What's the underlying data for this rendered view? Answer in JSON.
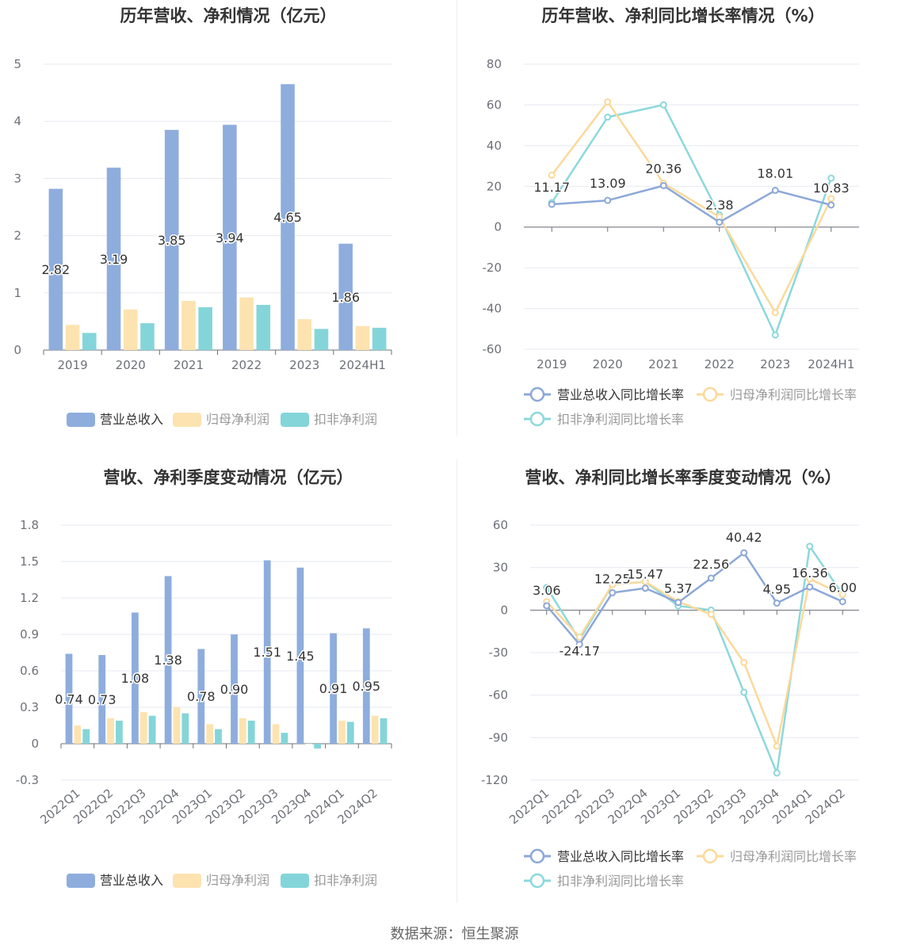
{
  "source": "数据来源：恒生聚源",
  "colors": {
    "revenue": "#8eaddd",
    "parent": "#fde3b0",
    "deducted": "#84d5d9",
    "revenue_line": "#8ca8d8",
    "parent_line": "#fbd99a",
    "deducted_line": "#8cd8dc"
  },
  "charts": {
    "annual_amount": {
      "title": "历年营收、净利情况（亿元）",
      "chart_data": {
        "type": "bar",
        "categories": [
          "2019",
          "2020",
          "2021",
          "2022",
          "2023",
          "2024H1"
        ],
        "ylim": [
          0,
          5
        ],
        "yticks": [
          0,
          1,
          2,
          3,
          4,
          5
        ],
        "tick_labels": [
          "0",
          "1",
          "2",
          "3",
          "4",
          "5"
        ],
        "series": [
          {
            "name": "营业总收入",
            "values": [
              2.82,
              3.19,
              3.85,
              3.94,
              4.65,
              1.86
            ],
            "labels": [
              "2.82",
              "3.19",
              "3.85",
              "3.94",
              "4.65",
              "1.86"
            ]
          },
          {
            "name": "归母净利润",
            "values": [
              0.44,
              0.71,
              0.86,
              0.92,
              0.54,
              0.42
            ]
          },
          {
            "name": "扣非净利润",
            "values": [
              0.3,
              0.47,
              0.75,
              0.79,
              0.37,
              0.39
            ]
          }
        ]
      }
    },
    "annual_growth": {
      "title": "历年营收、净利同比增长率情况（%）",
      "chart_data": {
        "type": "line",
        "categories": [
          "2019",
          "2020",
          "2021",
          "2022",
          "2023",
          "2024H1"
        ],
        "ylim": [
          -60,
          80
        ],
        "yticks": [
          -60,
          -40,
          -20,
          0,
          20,
          40,
          60,
          80
        ],
        "tick_labels": [
          "-60",
          "-40",
          "-20",
          "0",
          "20",
          "40",
          "60",
          "80"
        ],
        "series": [
          {
            "name": "营业总收入同比增长率",
            "values": [
              11.17,
              13.09,
              20.36,
              2.38,
              18.01,
              10.83
            ],
            "labels": [
              "11.17",
              "13.09",
              "20.36",
              "2.38",
              "18.01",
              "10.83"
            ]
          },
          {
            "name": "归母净利润同比增长率",
            "values": [
              25.5,
              61.5,
              21.5,
              5.0,
              -42.0,
              14.0
            ]
          },
          {
            "name": "扣非净利润同比增长率",
            "values": [
              12.0,
              54.0,
              60.0,
              6.0,
              -53.0,
              24.0
            ]
          }
        ]
      }
    },
    "quarterly_amount": {
      "title": "营收、净利季度变动情况（亿元）",
      "chart_data": {
        "type": "bar",
        "categories": [
          "2022Q1",
          "2022Q2",
          "2022Q3",
          "2022Q4",
          "2023Q1",
          "2023Q2",
          "2023Q3",
          "2023Q4",
          "2024Q1",
          "2024Q2"
        ],
        "ylim": [
          -0.3,
          1.8
        ],
        "yticks": [
          -0.3,
          0,
          0.3,
          0.6,
          0.9,
          1.2,
          1.5,
          1.8
        ],
        "tick_labels": [
          "-0.3",
          "0",
          "0.3",
          "0.6",
          "0.9",
          "1.2",
          "1.5",
          "1.8"
        ],
        "series": [
          {
            "name": "营业总收入",
            "values": [
              0.74,
              0.73,
              1.08,
              1.38,
              0.78,
              0.9,
              1.51,
              1.45,
              0.91,
              0.95
            ],
            "labels": [
              "0.74",
              "0.73",
              "1.08",
              "1.38",
              "0.78",
              "0.90",
              "1.51",
              "1.45",
              "0.91",
              "0.95"
            ]
          },
          {
            "name": "归母净利润",
            "values": [
              0.15,
              0.21,
              0.26,
              0.3,
              0.16,
              0.21,
              0.16,
              0.0,
              0.19,
              0.23
            ]
          },
          {
            "name": "扣非净利润",
            "values": [
              0.12,
              0.19,
              0.23,
              0.25,
              0.12,
              0.19,
              0.09,
              -0.04,
              0.18,
              0.21
            ]
          }
        ]
      }
    },
    "quarterly_growth": {
      "title": "营收、净利同比增长率季度变动情况（%）",
      "chart_data": {
        "type": "line",
        "categories": [
          "2022Q1",
          "2022Q2",
          "2022Q3",
          "2022Q4",
          "2023Q1",
          "2023Q2",
          "2023Q3",
          "2023Q4",
          "2024Q1",
          "2024Q2"
        ],
        "ylim": [
          -120,
          60
        ],
        "yticks": [
          -120,
          -90,
          -60,
          -30,
          0,
          30,
          60
        ],
        "tick_labels": [
          "-120",
          "-90",
          "-60",
          "-30",
          "0",
          "30",
          "60"
        ],
        "series": [
          {
            "name": "营业总收入同比增长率",
            "values": [
              3.06,
              -24.17,
              12.25,
              15.47,
              5.37,
              22.56,
              40.42,
              4.95,
              16.36,
              6.0
            ],
            "labels": [
              "3.06",
              "-24.17",
              "12.25",
              "15.47",
              "5.37",
              "22.56",
              "40.42",
              "4.95",
              "16.36",
              "6.00"
            ]
          },
          {
            "name": "归母净利润同比增长率",
            "values": [
              6.0,
              -19.0,
              18.0,
              20.0,
              6.0,
              -3.0,
              -37.0,
              -96.0,
              22.0,
              11.0
            ]
          },
          {
            "name": "扣非净利润同比增长率",
            "values": [
              16.0,
              -21.0,
              18.0,
              20.0,
              3.0,
              0.0,
              -58.0,
              -115.0,
              45.0,
              11.0
            ]
          }
        ]
      }
    }
  }
}
